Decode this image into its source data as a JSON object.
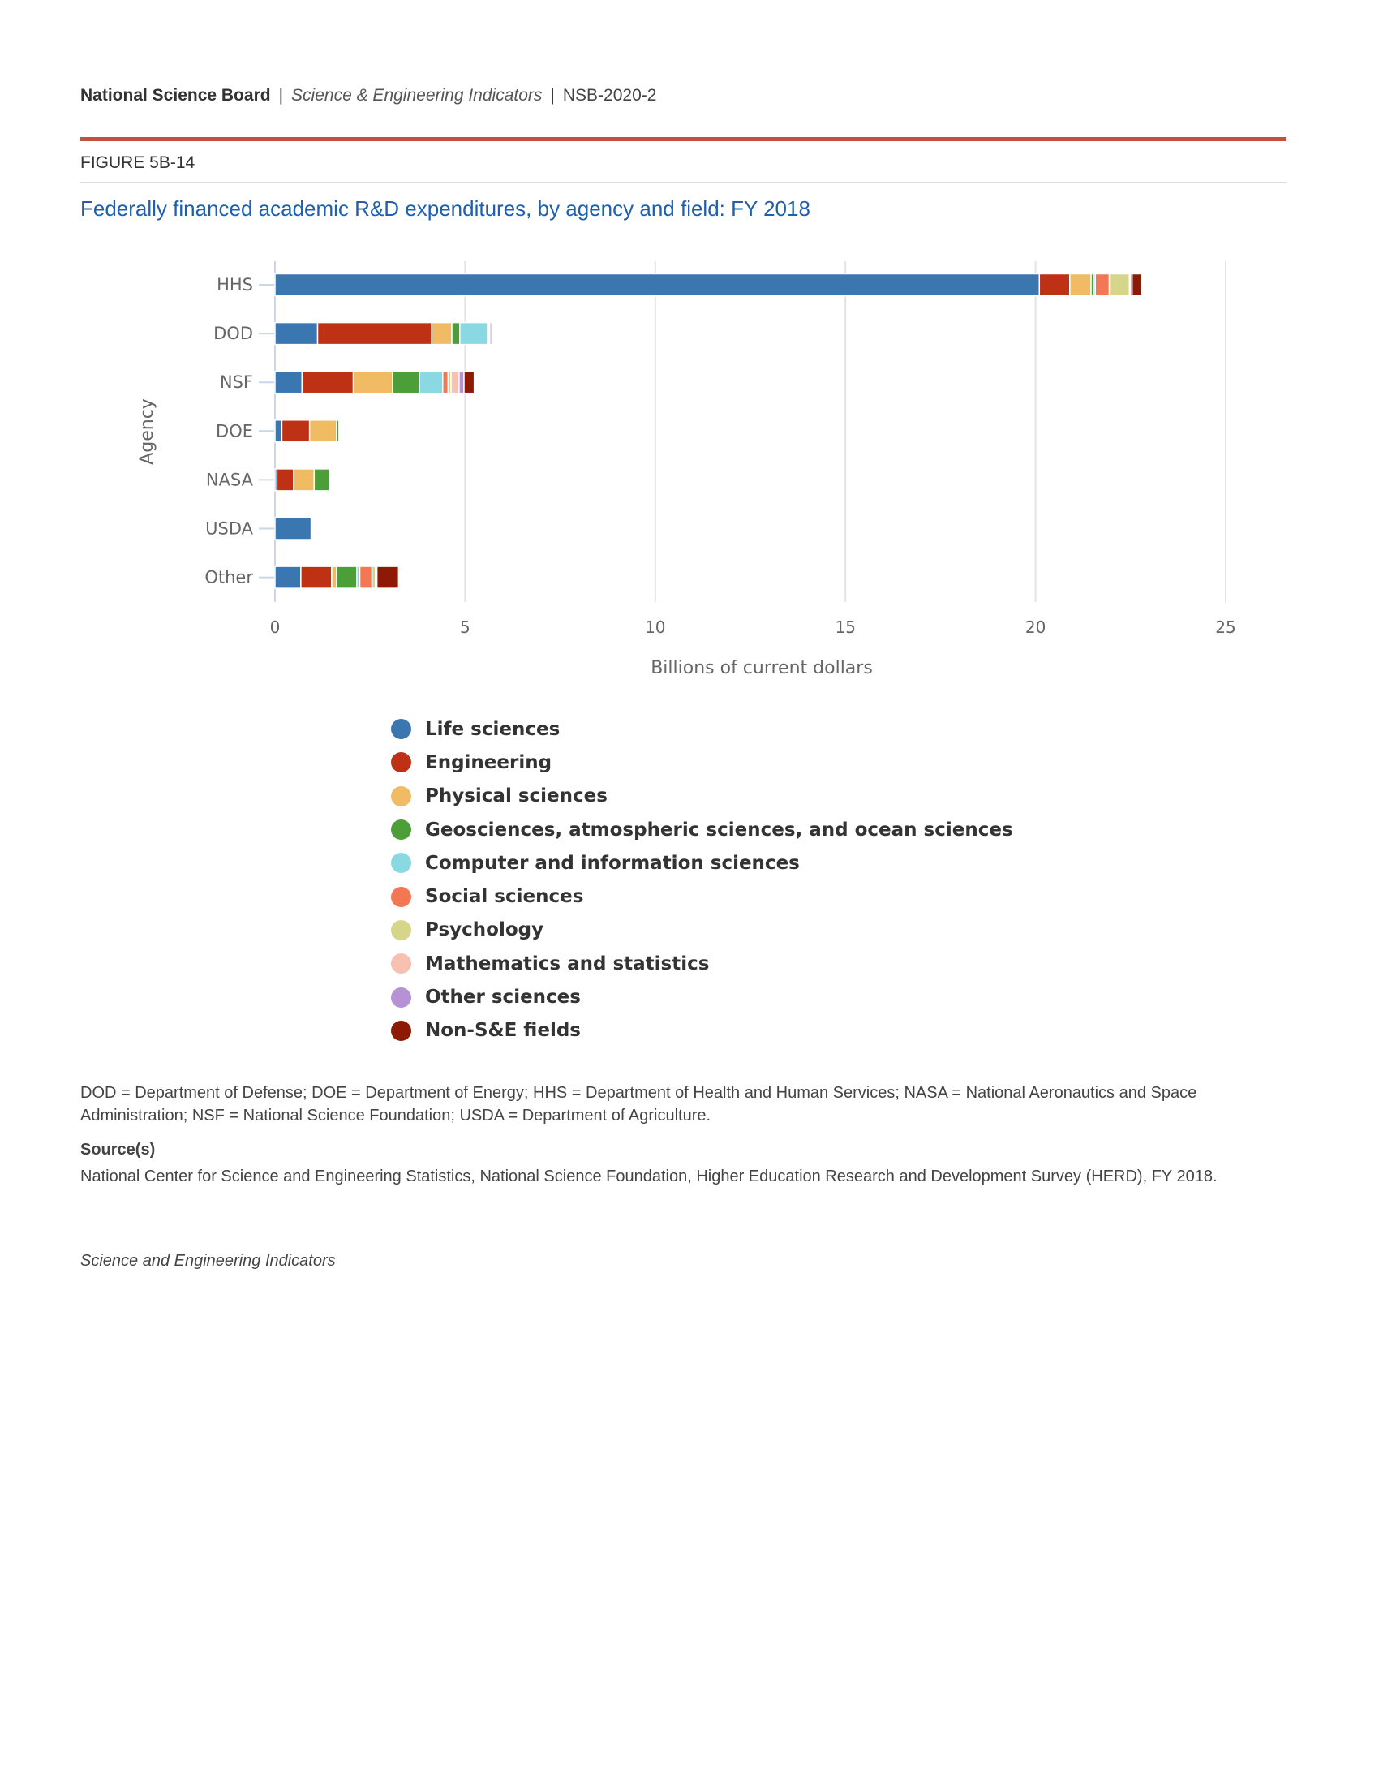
{
  "header": {
    "org": "National Science Board",
    "separator": "|",
    "publication": "Science & Engineering Indicators",
    "report_id": "NSB-2020-2"
  },
  "figure_label": "FIGURE 5B-14",
  "title": "Federally financed academic R&D expenditures, by agency and field: FY 2018",
  "chart_data": {
    "type": "bar",
    "orientation": "horizontal",
    "stacked": true,
    "title": "Federally financed academic R&D expenditures, by agency and field: FY 2018",
    "xlabel": "Billions of current dollars",
    "ylabel": "Agency",
    "xlim": [
      0,
      25
    ],
    "xticks": [
      "0",
      "5",
      "10",
      "15",
      "20",
      "25"
    ],
    "grid": true,
    "legend_position": "bottom",
    "categories": [
      "HHS",
      "DOD",
      "NSF",
      "DOE",
      "NASA",
      "USDA",
      "Other"
    ],
    "series": [
      {
        "name": "Life sciences",
        "color": "#3a76b0",
        "values": [
          20.1,
          1.12,
          0.71,
          0.18,
          0.05,
          0.95,
          0.68
        ]
      },
      {
        "name": "Engineering",
        "color": "#be3115",
        "values": [
          0.8,
          3.0,
          1.35,
          0.73,
          0.44,
          0.0,
          0.81
        ]
      },
      {
        "name": "Physical sciences",
        "color": "#f1bb63",
        "values": [
          0.56,
          0.53,
          1.03,
          0.71,
          0.54,
          0.0,
          0.13
        ]
      },
      {
        "name": "Geosciences, atmospheric sciences, and ocean sciences",
        "color": "#4c9e38",
        "values": [
          0.06,
          0.21,
          0.71,
          0.06,
          0.4,
          0.0,
          0.53
        ]
      },
      {
        "name": "Computer and information sciences",
        "color": "#8ad8e2",
        "values": [
          0.05,
          0.73,
          0.61,
          0.0,
          0.0,
          0.0,
          0.08
        ]
      },
      {
        "name": "Social sciences",
        "color": "#f47753",
        "values": [
          0.37,
          0.0,
          0.14,
          0.0,
          0.0,
          0.0,
          0.32
        ]
      },
      {
        "name": "Psychology",
        "color": "#d5d68a",
        "values": [
          0.53,
          0.03,
          0.08,
          0.0,
          0.0,
          0.0,
          0.09
        ]
      },
      {
        "name": "Mathematics and statistics",
        "color": "#f8c0b0",
        "values": [
          0.02,
          0.03,
          0.21,
          0.0,
          0.0,
          0.0,
          0.02
        ]
      },
      {
        "name": "Other sciences",
        "color": "#b592d3",
        "values": [
          0.05,
          0.05,
          0.13,
          0.0,
          0.0,
          0.0,
          0.02
        ]
      },
      {
        "name": "Non-S&E fields",
        "color": "#8c1a05",
        "values": [
          0.25,
          0.0,
          0.27,
          0.0,
          0.0,
          0.0,
          0.57
        ]
      }
    ]
  },
  "notes": {
    "abbreviations": "DOD = Department of Defense; DOE = Department of Energy; HHS = Department of Health and Human Services; NASA = National Aeronautics and Space Administration; NSF = National Science Foundation; USDA = Department of Agriculture.",
    "source_heading": "Source(s)",
    "source": "National Center for Science and Engineering Statistics, National Science Foundation, Higher Education Research and Development Survey (HERD), FY 2018.",
    "footer": "Science and Engineering Indicators"
  }
}
